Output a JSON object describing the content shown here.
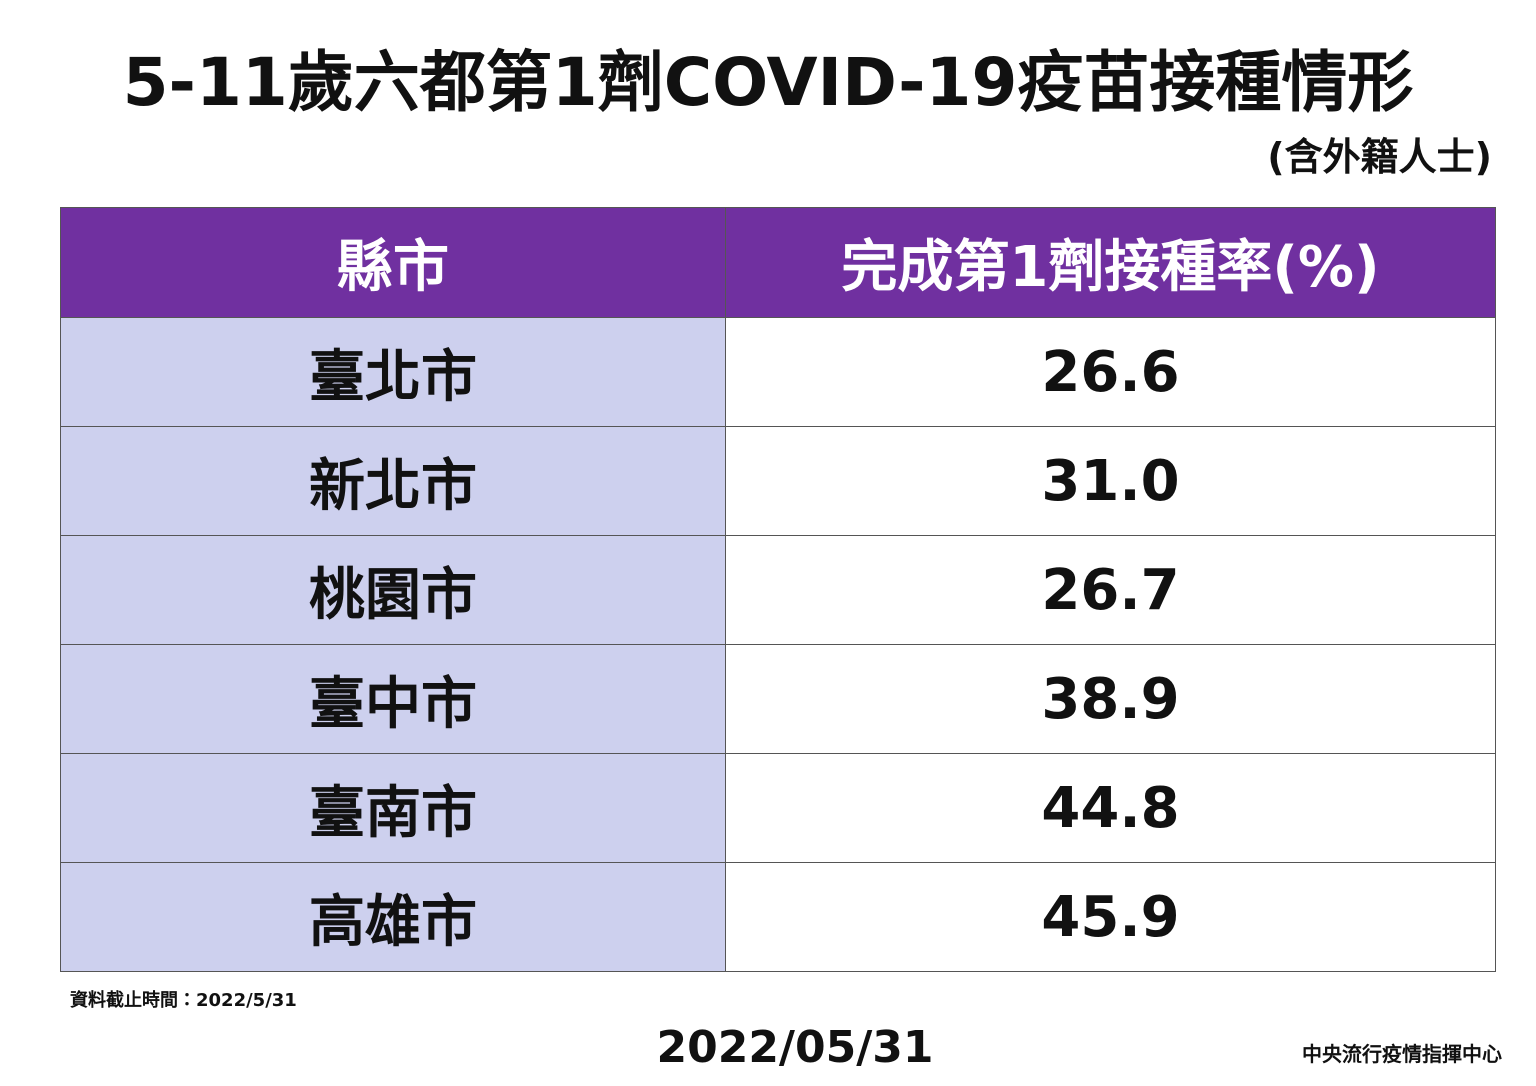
{
  "header": {
    "title": "5-11歲六都第1劑COVID-19疫苗接種情形",
    "subtitle": "(含外籍人士)"
  },
  "table": {
    "columns": [
      "縣市",
      "完成第1劑接種率(%)"
    ],
    "rows": [
      [
        "臺北市",
        "26.6"
      ],
      [
        "新北市",
        "31.0"
      ],
      [
        "桃園市",
        "26.7"
      ],
      [
        "臺中市",
        "38.9"
      ],
      [
        "臺南市",
        "44.8"
      ],
      [
        "高雄市",
        "45.9"
      ]
    ]
  },
  "footer": {
    "note": "資料截止時間：2022/5/31",
    "date": "2022/05/31",
    "source": "中央流行疫情指揮中心"
  }
}
